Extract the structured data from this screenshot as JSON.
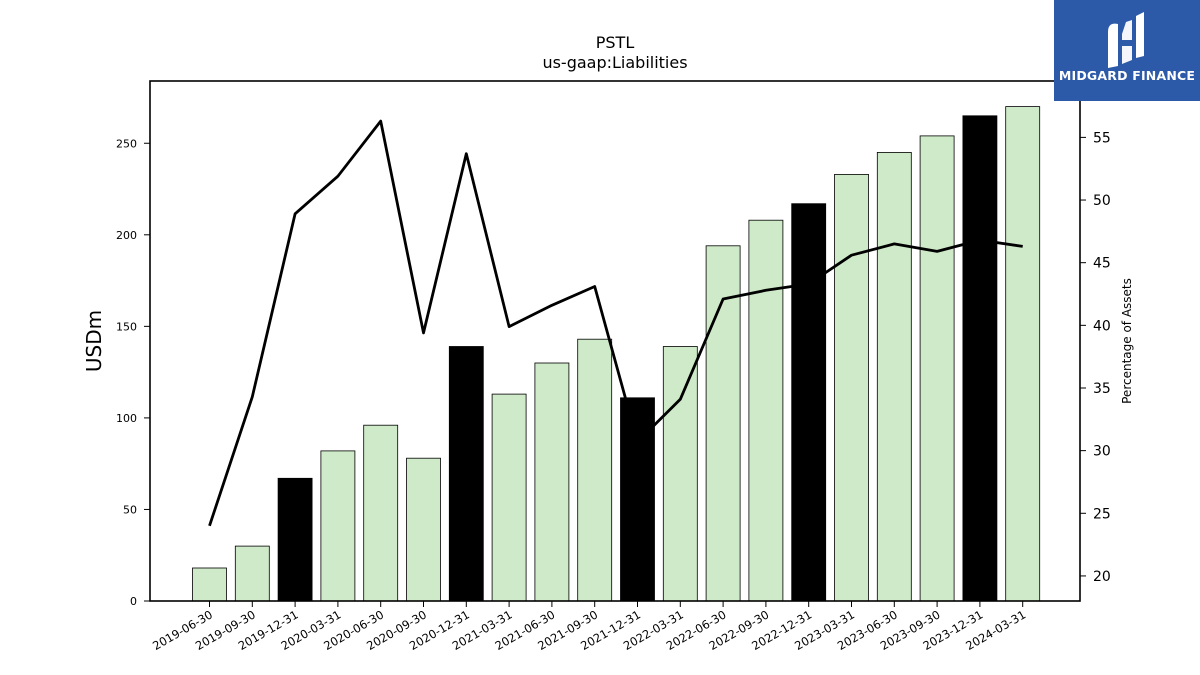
{
  "chart_data": {
    "type": "bar",
    "title": "PSTL",
    "subtitle": "us-gaap:Liabilities",
    "ylabel": "USDm",
    "y2label": "Percentage of Assets",
    "ylim": [
      0,
      284
    ],
    "y2lim": [
      18,
      59.5
    ],
    "yticks": [
      0,
      50,
      100,
      150,
      200,
      250
    ],
    "y2ticks": [
      20,
      25,
      30,
      35,
      40,
      45,
      50,
      55
    ],
    "categories": [
      "2019-06-30",
      "2019-09-30",
      "2019-12-31",
      "2020-03-31",
      "2020-06-30",
      "2020-09-30",
      "2020-12-31",
      "2021-03-31",
      "2021-06-30",
      "2021-09-30",
      "2021-12-31",
      "2022-03-31",
      "2022-06-30",
      "2022-09-30",
      "2022-12-31",
      "2023-03-31",
      "2023-06-30",
      "2023-09-30",
      "2023-12-31",
      "2024-03-31"
    ],
    "series": [
      {
        "kind": "bar",
        "values": [
          18,
          30,
          67,
          82,
          96,
          78,
          139,
          113,
          130,
          143,
          111,
          139,
          194,
          208,
          217,
          233,
          245,
          254,
          265,
          270
        ],
        "highlight": [
          false,
          false,
          true,
          false,
          false,
          false,
          true,
          false,
          false,
          false,
          true,
          false,
          false,
          false,
          true,
          false,
          false,
          false,
          true,
          false
        ],
        "color": "#cfeac8",
        "highlight_color": "#000000"
      },
      {
        "kind": "line",
        "axis": "right",
        "values": [
          24.0,
          34.3,
          48.9,
          51.9,
          56.3,
          39.4,
          53.7,
          39.9,
          41.6,
          43.1,
          30.7,
          34.1,
          42.1,
          42.8,
          43.3,
          45.6,
          46.5,
          45.9,
          46.8,
          46.3
        ],
        "color": "#000000"
      }
    ],
    "grid": false
  },
  "logo": {
    "text": "MIDGARD FINANCE",
    "color": "#2c5aa8"
  }
}
